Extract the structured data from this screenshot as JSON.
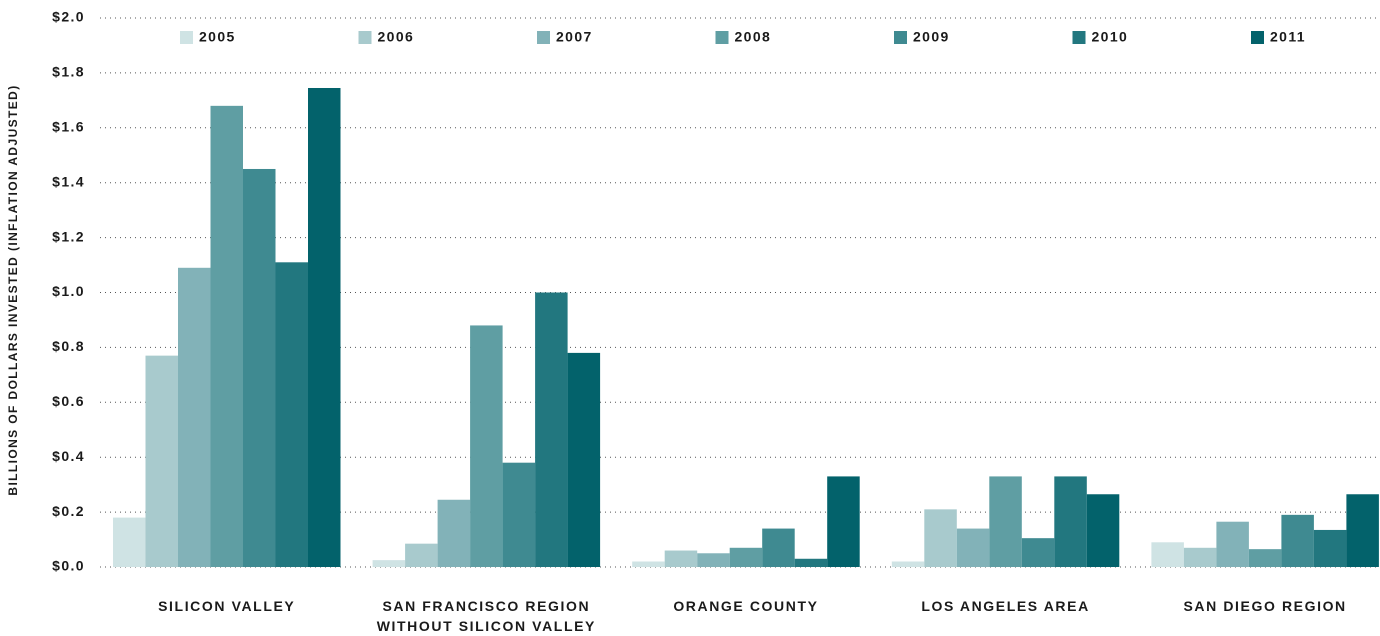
{
  "chart_data": {
    "type": "bar",
    "y_label": "BILLIONS OF DOLLARS INVESTED (INFLATION ADJUSTED)",
    "categories": [
      "SILICON VALLEY",
      "SAN FRANCISCO REGION\nWITHOUT SILICON VALLEY",
      "ORANGE COUNTY",
      "LOS ANGELES AREA",
      "SAN DIEGO REGION"
    ],
    "series": [
      {
        "name": "2005",
        "color": "#cfe3e4",
        "values": [
          0.18,
          0.025,
          0.02,
          0.02,
          0.09
        ]
      },
      {
        "name": "2006",
        "color": "#a8cacd",
        "values": [
          0.77,
          0.085,
          0.06,
          0.21,
          0.07
        ]
      },
      {
        "name": "2007",
        "color": "#82b2b8",
        "values": [
          1.09,
          0.245,
          0.05,
          0.14,
          0.165
        ]
      },
      {
        "name": "2008",
        "color": "#5f9ea3",
        "values": [
          1.68,
          0.88,
          0.07,
          0.33,
          0.065
        ]
      },
      {
        "name": "2009",
        "color": "#3f8a91",
        "values": [
          1.45,
          0.38,
          0.14,
          0.105,
          0.19
        ]
      },
      {
        "name": "2010",
        "color": "#22777f",
        "values": [
          1.11,
          1.0,
          0.03,
          0.33,
          0.135
        ]
      },
      {
        "name": "2011",
        "color": "#03626b",
        "values": [
          1.745,
          0.78,
          0.33,
          0.265,
          0.265
        ]
      }
    ],
    "ylim": [
      0,
      2
    ],
    "yticks": [
      {
        "value": 0,
        "label": "$0.0"
      },
      {
        "value": 0.2,
        "label": "$0.2"
      },
      {
        "value": 0.4,
        "label": "$0.4"
      },
      {
        "value": 0.6,
        "label": "$0.6"
      },
      {
        "value": 0.8,
        "label": "$0.8"
      },
      {
        "value": 1,
        "label": "$1.0"
      },
      {
        "value": 1.2,
        "label": "$1.2"
      },
      {
        "value": 1.4,
        "label": "$1.4"
      },
      {
        "value": 1.6,
        "label": "$1.6"
      },
      {
        "value": 1.8,
        "label": "$1.8"
      },
      {
        "value": 2,
        "label": "$2.0"
      }
    ],
    "grid": true,
    "legend": "top"
  }
}
